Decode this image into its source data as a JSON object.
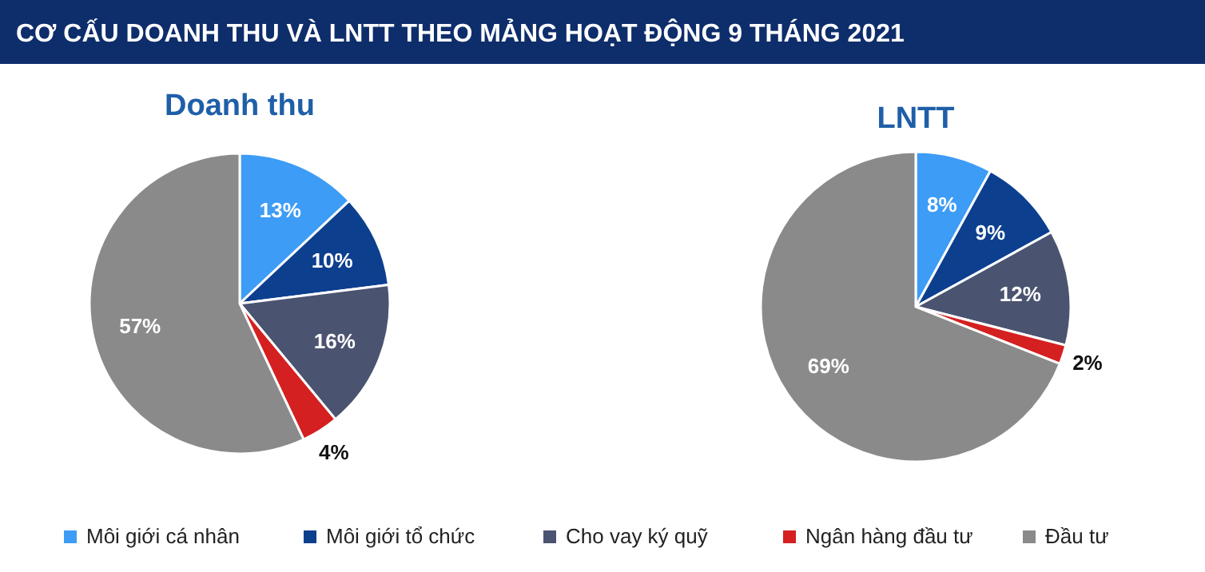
{
  "chart_data": [
    {
      "type": "pie",
      "title": "CƠ CẤU DOANH THU VÀ LNTT THEO MẢNG HOẠT ĐỘNG 9 THÁNG 2021",
      "subtitle": "Doanh thu",
      "categories": [
        "Môi giới cá nhân",
        "Môi giới tổ chức",
        "Cho vay ký quỹ",
        "Ngân hàng đầu tư",
        "Đầu tư"
      ],
      "values": [
        13,
        10,
        16,
        4,
        57
      ],
      "value_labels": [
        "13%",
        "10%",
        "16%",
        "4%",
        "57%"
      ],
      "colors": [
        "#3d9cf5",
        "#0d3f8f",
        "#4a5470",
        "#d42020",
        "#8a8a8a"
      ],
      "legend": "bottom"
    },
    {
      "type": "pie",
      "title": "LNTT",
      "values": [
        8,
        9,
        12,
        2,
        69
      ],
      "value_labels": [
        "8%",
        "9%",
        "12%",
        "2%",
        "69%"
      ],
      "colors": [
        "#3d9cf5",
        "#0d3f8f",
        "#4a5470",
        "#d42020",
        "#8a8a8a"
      ]
    }
  ]
}
